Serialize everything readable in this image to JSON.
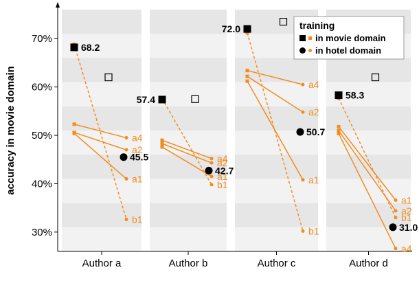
{
  "chart_data": {
    "type": "scatter",
    "ylabel": "accuracy in movie domain",
    "ylim": [
      26,
      76
    ],
    "yticks": [
      30,
      40,
      50,
      60,
      70
    ],
    "ytick_format": "%",
    "categories": [
      "Author a",
      "Author b",
      "Author c",
      "Author d"
    ],
    "legend": {
      "title": "training",
      "position": "top-right",
      "entries": [
        {
          "label": "in movie domain",
          "marker": "square"
        },
        {
          "label": "in hotel domain",
          "marker": "circle"
        }
      ]
    },
    "colors": {
      "accent": "#f28c1f",
      "band_light": "#f2f2f2",
      "band_dark": "#e6e6e6",
      "group_bg": "#e9e9e9",
      "separator": "#ffffff"
    },
    "authors": [
      {
        "name": "Author a",
        "movie_avg": 68.2,
        "movie_avg_label": "68.2",
        "hotel_avg": 45.5,
        "hotel_avg_label": "45.5",
        "open_square": 62.0,
        "lines": [
          {
            "name": "a4",
            "start": 52.3,
            "end": 49.5,
            "dashed": false
          },
          {
            "name": "a2",
            "start": 50.6,
            "end": 47.0,
            "dashed": false
          },
          {
            "name": "a1",
            "start": 50.4,
            "end": 41.0,
            "dashed": false
          },
          {
            "name": "b1",
            "start": 68.8,
            "end": 32.6,
            "dashed": true
          }
        ]
      },
      {
        "name": "Author b",
        "movie_avg": 57.4,
        "movie_avg_label": "57.4",
        "hotel_avg": 42.7,
        "hotel_avg_label": "42.7",
        "open_square": 57.5,
        "lines": [
          {
            "name": "a4",
            "start": 49.0,
            "end": 45.2,
            "dashed": false
          },
          {
            "name": "a2",
            "start": 48.3,
            "end": 44.3,
            "dashed": false
          },
          {
            "name": "a1",
            "start": 47.6,
            "end": 41.5,
            "dashed": false
          },
          {
            "name": "b1",
            "start": 57.6,
            "end": 39.8,
            "dashed": true
          }
        ]
      },
      {
        "name": "Author c",
        "movie_avg": 72.0,
        "movie_avg_label": "72.0",
        "hotel_avg": 50.7,
        "hotel_avg_label": "50.7",
        "open_square": 73.5,
        "lines": [
          {
            "name": "a4",
            "start": 63.4,
            "end": 60.5,
            "dashed": false
          },
          {
            "name": "a2",
            "start": 62.2,
            "end": 54.8,
            "dashed": false
          },
          {
            "name": "a1",
            "start": 61.2,
            "end": 40.8,
            "dashed": false
          },
          {
            "name": "b1",
            "start": 71.2,
            "end": 30.2,
            "dashed": true
          }
        ]
      },
      {
        "name": "Author d",
        "movie_avg": 58.3,
        "movie_avg_label": "58.3",
        "hotel_avg": 31.0,
        "hotel_avg_label": "31.0",
        "open_square": 62.0,
        "lines": [
          {
            "name": "a1",
            "start": 51.8,
            "end": 36.6,
            "dashed": false
          },
          {
            "name": "a2",
            "start": 51.0,
            "end": 34.4,
            "dashed": false
          },
          {
            "name": "b1",
            "start": 57.7,
            "end": 33.0,
            "dashed": true
          },
          {
            "name": "a4",
            "start": 50.4,
            "end": 26.6,
            "dashed": false
          }
        ]
      }
    ]
  }
}
